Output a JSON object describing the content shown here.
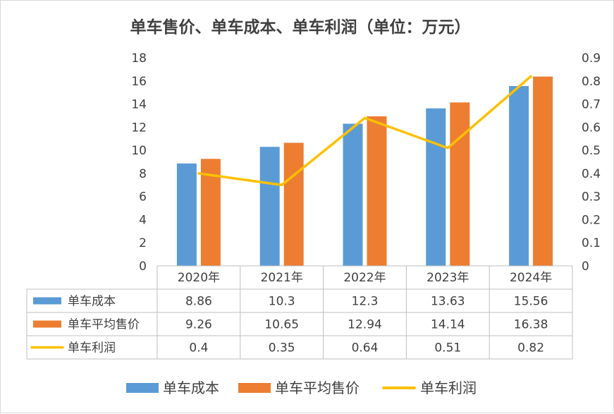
{
  "chart_data": {
    "type": "bar",
    "title": "单车售价、单车成本、单车利润（单位：万元）",
    "categories": [
      "2020年",
      "2021年",
      "2022年",
      "2023年",
      "2024年"
    ],
    "y_left": {
      "ylim": [
        0,
        18
      ],
      "ticks": [
        "0",
        "2",
        "4",
        "6",
        "8",
        "10",
        "12",
        "14",
        "16",
        "18"
      ]
    },
    "y_right": {
      "ylim": [
        0,
        0.9
      ],
      "ticks": [
        "0",
        "0.1",
        "0.2",
        "0.3",
        "0.4",
        "0.5",
        "0.6",
        "0.7",
        "0.8",
        "0.9"
      ]
    },
    "series": [
      {
        "name": "单车成本",
        "type": "bar",
        "axis": "left",
        "color": "#5b9bd5",
        "values": [
          8.86,
          10.3,
          12.3,
          13.63,
          15.56
        ],
        "labels": [
          "8.86",
          "10.3",
          "12.3",
          "13.63",
          "15.56"
        ]
      },
      {
        "name": "单车平均售价",
        "type": "bar",
        "axis": "left",
        "color": "#ed7d31",
        "values": [
          9.26,
          10.65,
          12.94,
          14.14,
          16.38
        ],
        "labels": [
          "9.26",
          "10.65",
          "12.94",
          "14.14",
          "16.38"
        ]
      },
      {
        "name": "单车利润",
        "type": "line",
        "axis": "right",
        "color": "#ffc000",
        "values": [
          0.4,
          0.35,
          0.64,
          0.51,
          0.82
        ],
        "labels": [
          "0.4",
          "0.35",
          "0.64",
          "0.51",
          "0.82"
        ]
      }
    ],
    "legend": [
      "单车成本",
      "单车平均售价",
      "单车利润"
    ],
    "legend_position": "bottom",
    "data_table": true,
    "grid": false
  }
}
